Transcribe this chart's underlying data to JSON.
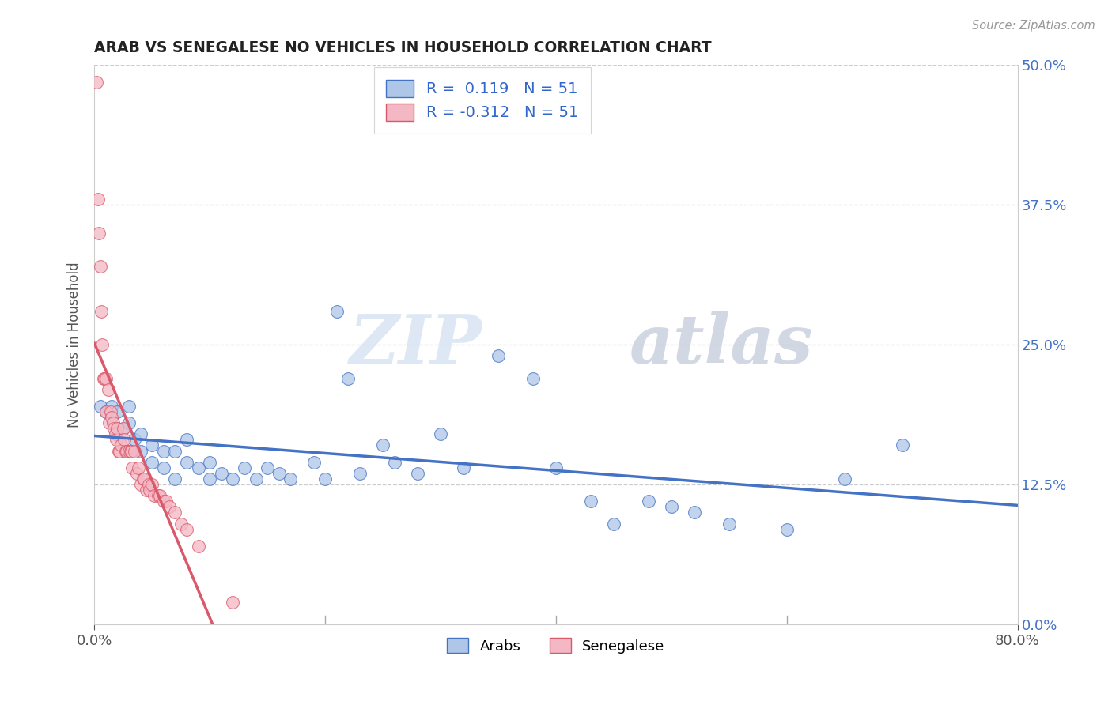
{
  "title": "ARAB VS SENEGALESE NO VEHICLES IN HOUSEHOLD CORRELATION CHART",
  "source": "Source: ZipAtlas.com",
  "ylabel": "No Vehicles in Household",
  "xlim": [
    0.0,
    0.8
  ],
  "ylim": [
    0.0,
    0.5
  ],
  "xticks": [
    0.0,
    0.8
  ],
  "xtick_labels": [
    "0.0%",
    "80.0%"
  ],
  "ytick_labels": [
    "0.0%",
    "12.5%",
    "25.0%",
    "37.5%",
    "50.0%"
  ],
  "yticks": [
    0.0,
    0.125,
    0.25,
    0.375,
    0.5
  ],
  "arab_R": 0.119,
  "arab_N": 51,
  "senegalese_R": -0.312,
  "senegalese_N": 51,
  "arab_color": "#aec6e8",
  "arab_line_color": "#4472c4",
  "senegalese_color": "#f4b8c4",
  "senegalese_line_color": "#d9596a",
  "watermark_zip": "ZIP",
  "watermark_atlas": "atlas",
  "arab_x": [
    0.005,
    0.01,
    0.015,
    0.02,
    0.02,
    0.025,
    0.03,
    0.03,
    0.035,
    0.04,
    0.04,
    0.05,
    0.05,
    0.06,
    0.06,
    0.07,
    0.07,
    0.08,
    0.08,
    0.09,
    0.1,
    0.1,
    0.11,
    0.12,
    0.13,
    0.14,
    0.15,
    0.16,
    0.17,
    0.19,
    0.2,
    0.21,
    0.22,
    0.23,
    0.25,
    0.26,
    0.28,
    0.3,
    0.32,
    0.35,
    0.38,
    0.4,
    0.43,
    0.45,
    0.48,
    0.5,
    0.52,
    0.55,
    0.6,
    0.65,
    0.7
  ],
  "arab_y": [
    0.195,
    0.19,
    0.195,
    0.19,
    0.175,
    0.175,
    0.195,
    0.18,
    0.165,
    0.17,
    0.155,
    0.16,
    0.145,
    0.155,
    0.14,
    0.155,
    0.13,
    0.165,
    0.145,
    0.14,
    0.145,
    0.13,
    0.135,
    0.13,
    0.14,
    0.13,
    0.14,
    0.135,
    0.13,
    0.145,
    0.13,
    0.28,
    0.22,
    0.135,
    0.16,
    0.145,
    0.135,
    0.17,
    0.14,
    0.24,
    0.22,
    0.14,
    0.11,
    0.09,
    0.11,
    0.105,
    0.1,
    0.09,
    0.085,
    0.13,
    0.16
  ],
  "senegalese_x": [
    0.002,
    0.003,
    0.004,
    0.005,
    0.006,
    0.007,
    0.008,
    0.009,
    0.01,
    0.01,
    0.012,
    0.013,
    0.014,
    0.015,
    0.016,
    0.017,
    0.018,
    0.019,
    0.02,
    0.021,
    0.022,
    0.023,
    0.025,
    0.026,
    0.027,
    0.028,
    0.03,
    0.031,
    0.032,
    0.033,
    0.035,
    0.037,
    0.038,
    0.04,
    0.042,
    0.043,
    0.045,
    0.047,
    0.048,
    0.05,
    0.052,
    0.055,
    0.057,
    0.06,
    0.062,
    0.065,
    0.07,
    0.075,
    0.08,
    0.09,
    0.12
  ],
  "senegalese_y": [
    0.485,
    0.38,
    0.35,
    0.32,
    0.28,
    0.25,
    0.22,
    0.22,
    0.22,
    0.19,
    0.21,
    0.18,
    0.19,
    0.185,
    0.18,
    0.175,
    0.17,
    0.165,
    0.175,
    0.155,
    0.155,
    0.16,
    0.175,
    0.165,
    0.155,
    0.155,
    0.155,
    0.155,
    0.155,
    0.14,
    0.155,
    0.135,
    0.14,
    0.125,
    0.13,
    0.13,
    0.12,
    0.125,
    0.12,
    0.125,
    0.115,
    0.115,
    0.115,
    0.11,
    0.11,
    0.105,
    0.1,
    0.09,
    0.085,
    0.07,
    0.02
  ]
}
